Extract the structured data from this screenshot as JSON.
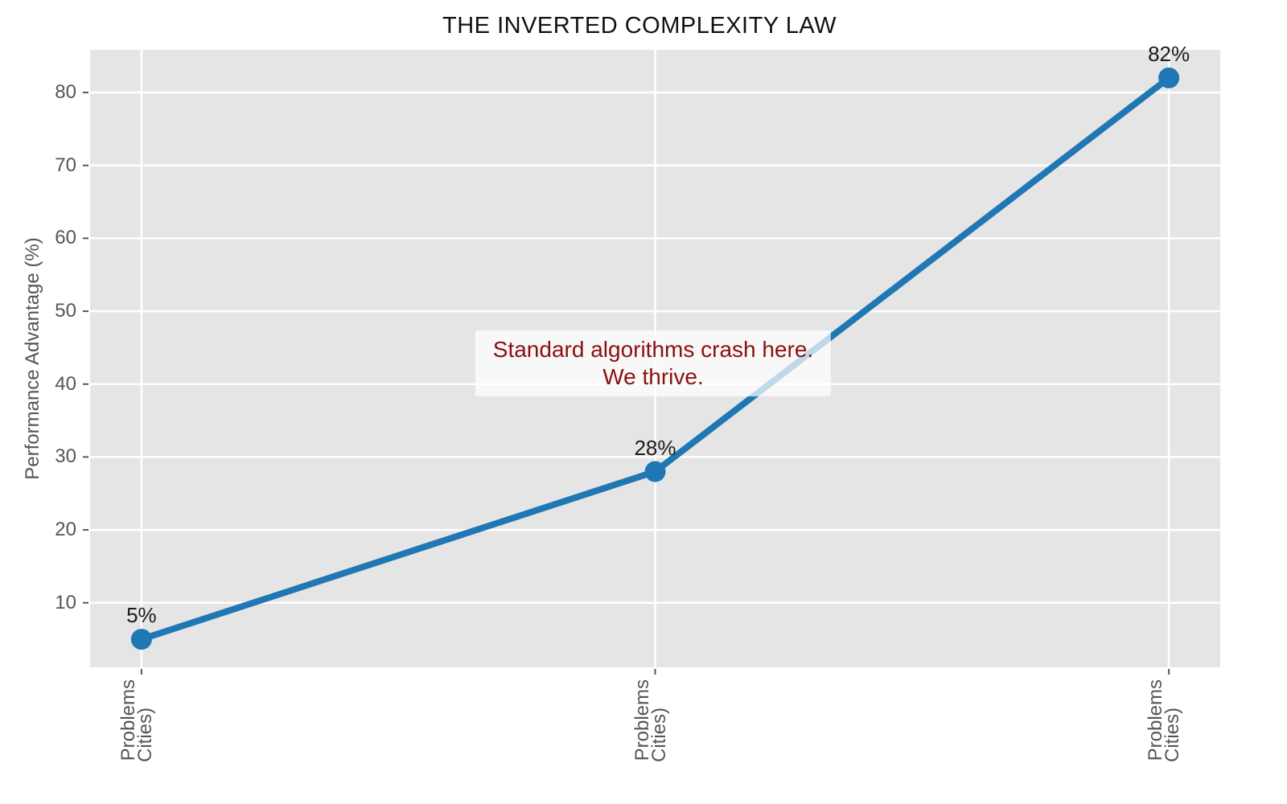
{
  "chart_data": {
    "type": "line",
    "title": "THE INVERTED COMPLEXITY LAW",
    "xlabel": "",
    "ylabel": "Performance Advantage (%)",
    "x": [
      0,
      1,
      2
    ],
    "x_tick_labels_visible": [
      [
        "Problems",
        "Cities)"
      ],
      [
        "Problems",
        "Cities)"
      ],
      [
        "Problems",
        "Cities)"
      ]
    ],
    "values": [
      5,
      28,
      82
    ],
    "point_labels": [
      "5%",
      "28%",
      "82%"
    ],
    "yticks": [
      10,
      20,
      30,
      40,
      50,
      60,
      70,
      80
    ],
    "ylim": [
      1.15,
      85.85
    ],
    "xlim": [
      -0.1,
      2.1
    ],
    "grid": true,
    "legend": false,
    "annotation": {
      "text_lines": [
        "Standard algorithms crash here.",
        "We thrive."
      ],
      "anchor_x": 1,
      "anchor_y": 43
    },
    "colors": {
      "line": "#1f77b4",
      "marker": "#1f77b4",
      "plot_bg": "#e5e5e5",
      "grid": "#ffffff",
      "tick": "#555555",
      "tick_text": "#555555",
      "title_text": "#111111",
      "label_text": "#1c1c1c",
      "annotation_text": "#8b1111",
      "annotation_bg": "rgba(255,255,255,0.72)"
    }
  }
}
